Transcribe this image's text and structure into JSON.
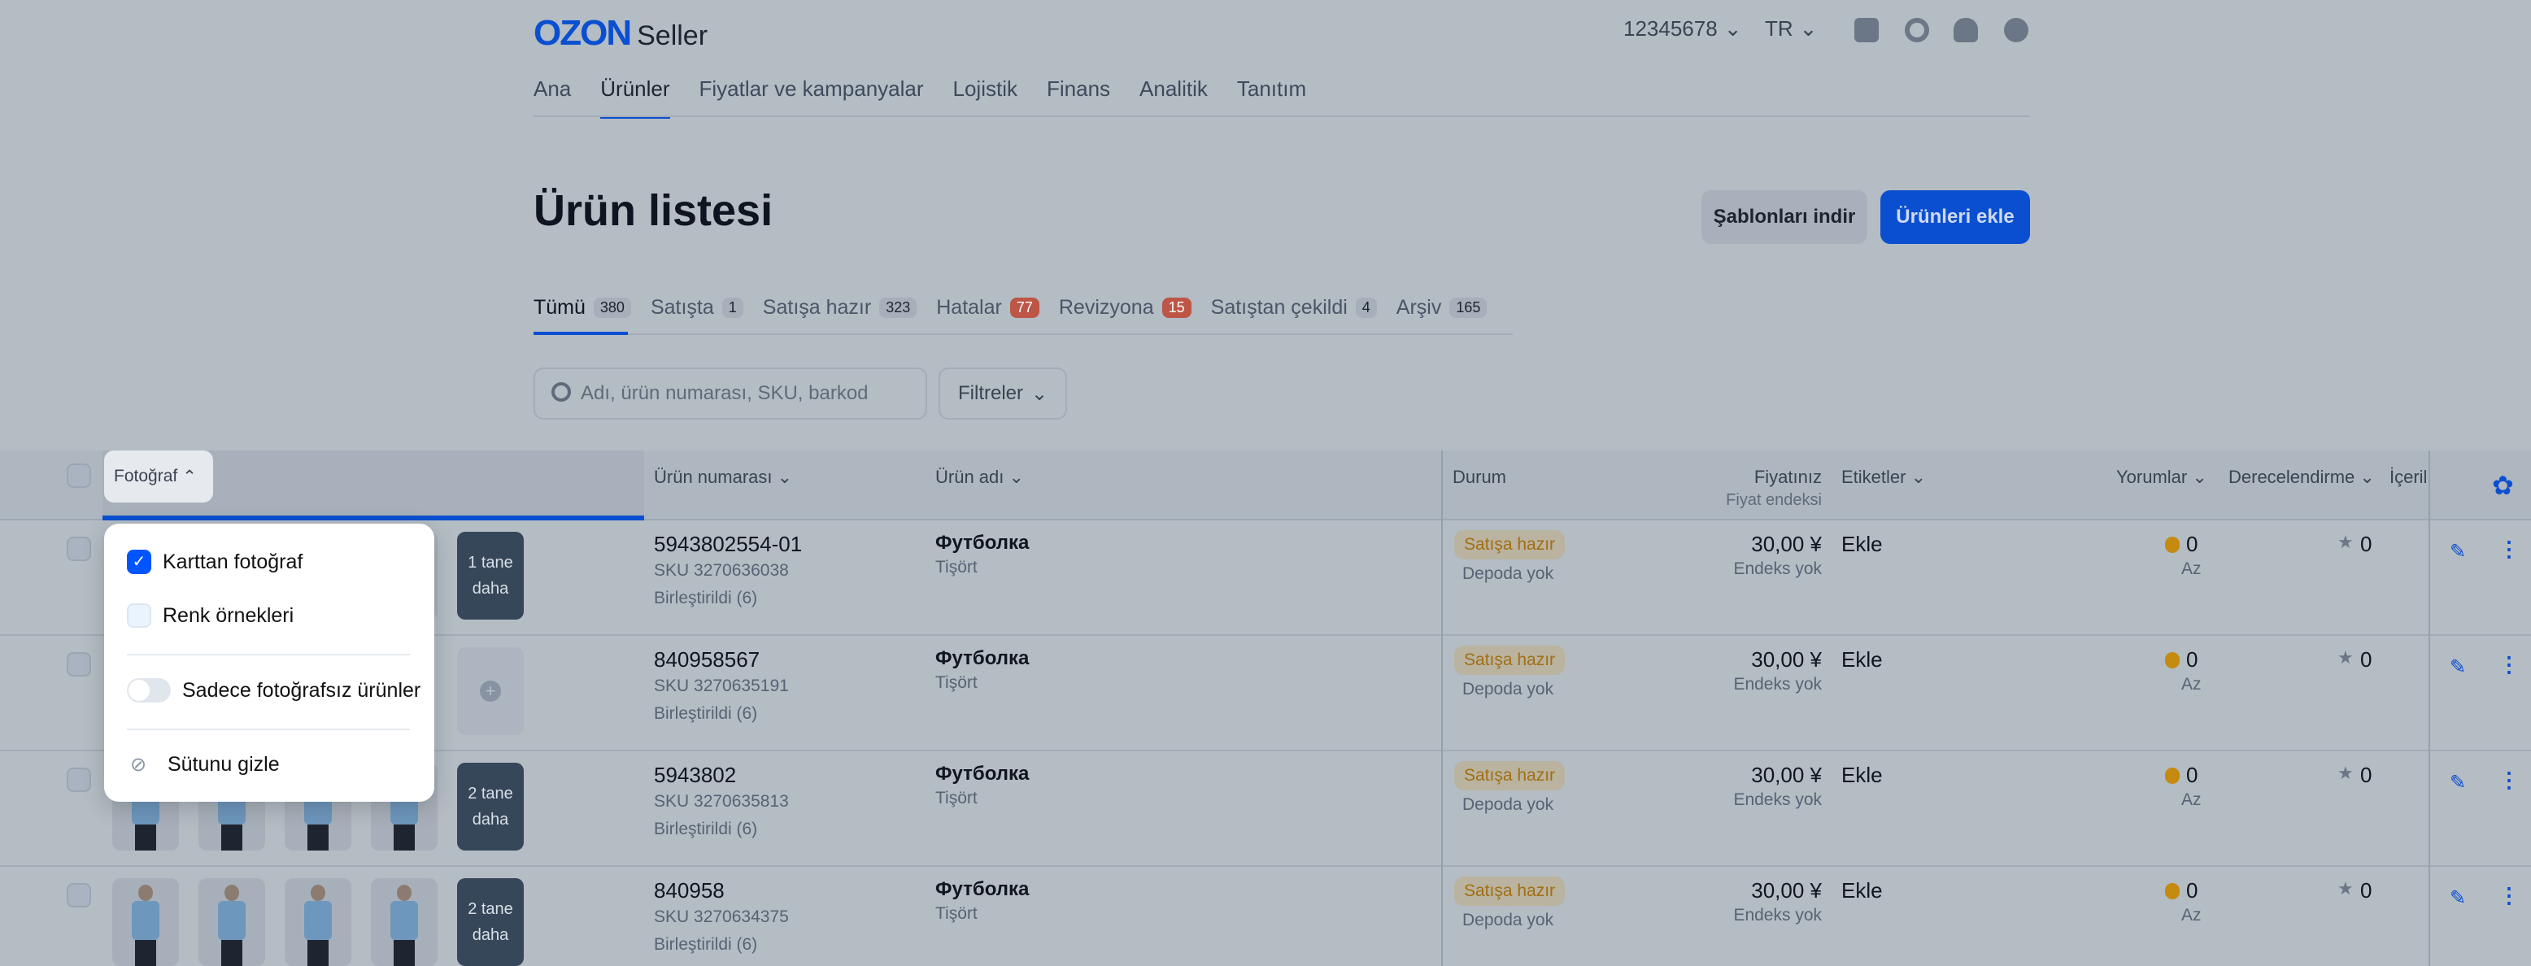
{
  "header": {
    "logo": "OZON",
    "logo_suffix": "Seller",
    "account": "12345678",
    "language": "TR",
    "icons": [
      "chat-icon",
      "headset-icon",
      "bell-icon",
      "user-icon"
    ]
  },
  "nav": [
    "Ana",
    "Ürünler",
    "Fiyatlar ve kampanyalar",
    "Lojistik",
    "Finans",
    "Analitik",
    "Tanıtım"
  ],
  "nav_active": "Ürünler",
  "page": {
    "title": "Ürün listesi",
    "download_templates": "Şablonları indir",
    "add_products": "Ürünleri ekle"
  },
  "tabs": [
    {
      "label": "Tümü",
      "count": "380",
      "active": true
    },
    {
      "label": "Satışta",
      "count": "1"
    },
    {
      "label": "Satışa hazır",
      "count": "323"
    },
    {
      "label": "Hatalar",
      "count": "77",
      "alert": true
    },
    {
      "label": "Revizyona",
      "count": "15",
      "alert": true
    },
    {
      "label": "Satıştan çekildi",
      "count": "4"
    },
    {
      "label": "Arşiv",
      "count": "165"
    }
  ],
  "search": {
    "placeholder": "Adı, ürün numarası, SKU, barkod"
  },
  "filters": "Filtreler",
  "columns": {
    "photo": "Fotoğraf",
    "number": "Ürün numarası",
    "name": "Ürün adı",
    "status": "Durum",
    "price": "Fiyatınız",
    "price_index": "Fiyat endeksi",
    "tags": "Etiketler",
    "reviews": "Yorumlar",
    "rating": "Derecelendirme",
    "content": "İçeril"
  },
  "dropdown": {
    "card_photo": "Karttan fotoğraf",
    "card_photo_checked": true,
    "color_samples": "Renk örnekleri",
    "color_samples_checked": false,
    "only_without_photo": "Sadece fotoğrafsız ürünler",
    "only_without_photo_on": false,
    "hide_column": "Sütunu gizle"
  },
  "rows": [
    {
      "number": "5943802554-01",
      "sku": "SKU 3270636038",
      "merged": "Birleştirildi (6)",
      "name": "Футболка",
      "category": "Tişört",
      "status": "Satışa hazır",
      "stock": "Depoda yok",
      "price": "30,00 ¥",
      "index": "Endeks yok",
      "tags": "Ekle",
      "reviews": "0",
      "reviews_note": "Az",
      "rating": "0",
      "more_photos": "1 tane daha"
    },
    {
      "number": "840958567",
      "sku": "SKU 3270635191",
      "merged": "Birleştirildi (6)",
      "name": "Футболка",
      "category": "Tişört",
      "status": "Satışa hazır",
      "stock": "Depoda yok",
      "price": "30,00 ¥",
      "index": "Endeks yok",
      "tags": "Ekle",
      "reviews": "0",
      "reviews_note": "Az",
      "rating": "0",
      "more_photos": ""
    },
    {
      "number": "5943802",
      "sku": "SKU 3270635813",
      "merged": "Birleştirildi (6)",
      "name": "Футболка",
      "category": "Tişört",
      "status": "Satışa hazır",
      "stock": "Depoda yok",
      "price": "30,00 ¥",
      "index": "Endeks yok",
      "tags": "Ekle",
      "reviews": "0",
      "reviews_note": "Az",
      "rating": "0",
      "more_photos": "2 tane daha"
    },
    {
      "number": "840958",
      "sku": "SKU 3270634375",
      "merged": "Birleştirildi (6)",
      "name": "Футболка",
      "category": "Tişört",
      "status": "Satışa hazır",
      "stock": "Depoda yok",
      "price": "30,00 ¥",
      "index": "Endeks yok",
      "tags": "Ekle",
      "reviews": "0",
      "reviews_note": "Az",
      "rating": "0",
      "more_photos": "2 tane daha"
    }
  ],
  "colors": {
    "accent": "#0b4fd1",
    "alert": "#bd5646",
    "status": "#a36e12"
  }
}
